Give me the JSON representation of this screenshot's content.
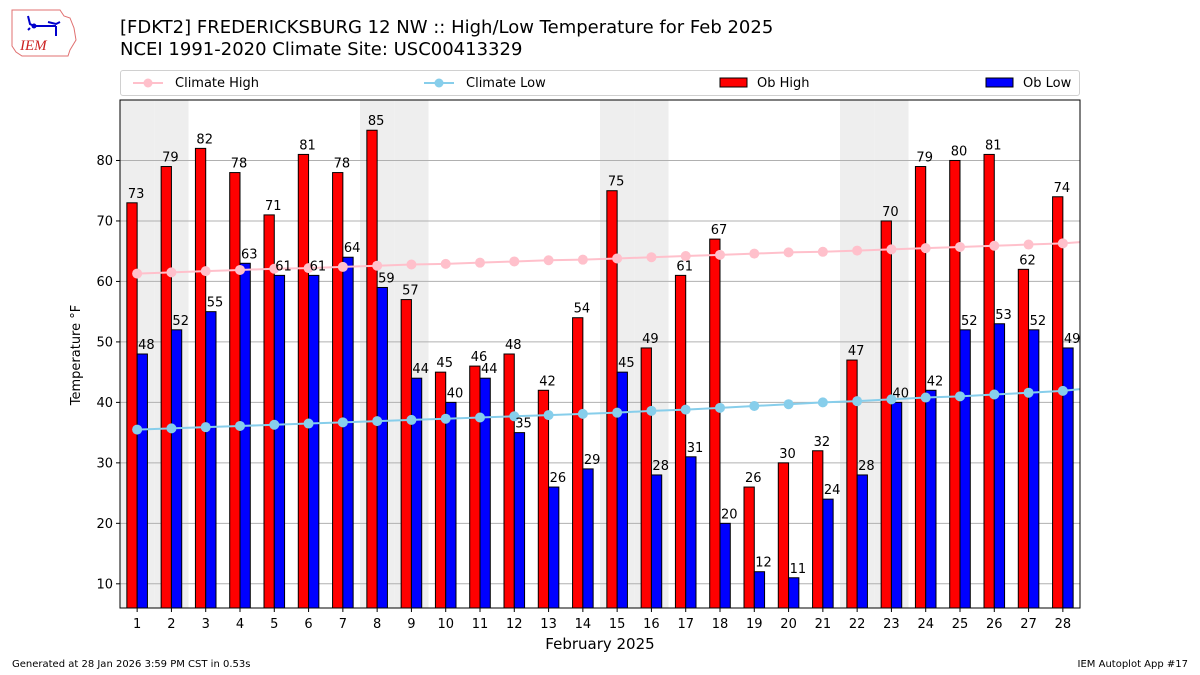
{
  "title_line1": "[FDKT2] FREDERICKSBURG 12 NW :: High/Low Temperature for Feb 2025",
  "title_line2": "NCEI 1991-2020 Climate Site: USC00413329",
  "logo_text": "IEM",
  "footer_left": "Generated at 28 Jan 2026 3:59 PM CST in 0.53s",
  "footer_right": "IEM Autoplot App #17",
  "colors": {
    "ob_high": "#ff0000",
    "ob_low": "#0000ff",
    "climate_high": "#ffc0cb",
    "climate_low": "#87ceeb",
    "weekend_shade": "#eeeeee",
    "grid": "#b0b0b0"
  },
  "legend": [
    {
      "label": "Climate High",
      "kind": "line",
      "color": "#ffc0cb"
    },
    {
      "label": "Climate Low",
      "kind": "line",
      "color": "#87ceeb"
    },
    {
      "label": "Ob High",
      "kind": "box",
      "color": "#ff0000"
    },
    {
      "label": "Ob Low",
      "kind": "box",
      "color": "#0000ff"
    }
  ],
  "chart_data": {
    "type": "bar",
    "title": "[FDKT2] FREDERICKSBURG 12 NW :: High/Low Temperature for Feb 2025",
    "xlabel": "February 2025",
    "ylabel": "Temperature °F",
    "ylim": [
      6,
      90
    ],
    "yticks": [
      10,
      20,
      30,
      40,
      50,
      60,
      70,
      80
    ],
    "grid": true,
    "legend_position": "top",
    "categories": [
      "1",
      "2",
      "3",
      "4",
      "5",
      "6",
      "7",
      "8",
      "9",
      "10",
      "11",
      "12",
      "13",
      "14",
      "15",
      "16",
      "17",
      "18",
      "19",
      "20",
      "21",
      "22",
      "23",
      "24",
      "25",
      "26",
      "27",
      "28"
    ],
    "shaded_days": [
      1,
      2,
      8,
      9,
      15,
      16,
      22,
      23
    ],
    "series": [
      {
        "name": "Ob High",
        "type": "bar",
        "values": [
          73,
          79,
          82,
          78,
          71,
          81,
          78,
          85,
          57,
          45,
          46,
          48,
          42,
          54,
          75,
          49,
          61,
          67,
          26,
          30,
          32,
          47,
          70,
          79,
          80,
          81,
          62,
          74
        ]
      },
      {
        "name": "Ob Low",
        "type": "bar",
        "values": [
          48,
          52,
          55,
          63,
          61,
          61,
          64,
          59,
          44,
          40,
          44,
          35,
          26,
          29,
          45,
          28,
          31,
          20,
          12,
          11,
          24,
          28,
          40,
          42,
          52,
          53,
          52,
          49
        ]
      },
      {
        "name": "Climate High",
        "type": "line",
        "values": [
          61.3,
          61.5,
          61.7,
          61.9,
          62.1,
          62.2,
          62.4,
          62.6,
          62.8,
          62.9,
          63.1,
          63.3,
          63.5,
          63.6,
          63.8,
          64.0,
          64.2,
          64.4,
          64.6,
          64.8,
          64.9,
          65.1,
          65.3,
          65.5,
          65.7,
          65.9,
          66.1,
          66.3
        ]
      },
      {
        "name": "Climate Low",
        "type": "line",
        "values": [
          35.5,
          35.7,
          35.9,
          36.1,
          36.3,
          36.5,
          36.7,
          36.9,
          37.1,
          37.3,
          37.5,
          37.7,
          37.9,
          38.1,
          38.3,
          38.6,
          38.8,
          39.1,
          39.4,
          39.7,
          40.0,
          40.2,
          40.5,
          40.8,
          41.0,
          41.3,
          41.6,
          41.9
        ]
      }
    ]
  }
}
